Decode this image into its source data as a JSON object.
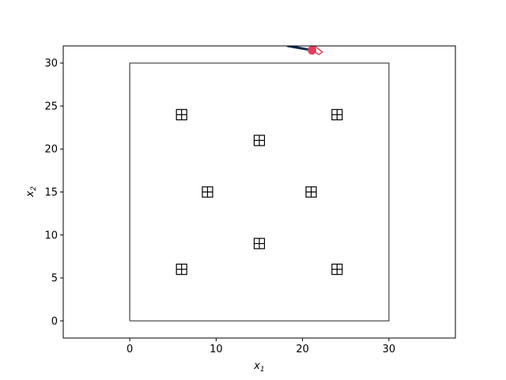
{
  "chart_data": {
    "type": "scatter",
    "title": "",
    "xlabel": "x",
    "xlabel_sub": "1",
    "ylabel": "x",
    "ylabel_sub": "2",
    "xlim": [
      -7.7,
      37.7
    ],
    "ylim": [
      -2,
      32
    ],
    "xticks": [
      0,
      10,
      20,
      30
    ],
    "yticks": [
      0,
      5,
      10,
      15,
      20,
      25,
      30
    ],
    "grid": false,
    "legend": "none",
    "boundary": {
      "x": [
        0,
        30,
        30,
        0,
        0
      ],
      "y": [
        0,
        0,
        30,
        30,
        0
      ],
      "color": "#404040"
    },
    "obstacles": {
      "marker": "boxed-plus",
      "color": "#000000",
      "points": [
        {
          "x": 6,
          "y": 24
        },
        {
          "x": 24,
          "y": 24
        },
        {
          "x": 15,
          "y": 21
        },
        {
          "x": 9,
          "y": 15
        },
        {
          "x": 21,
          "y": 15
        },
        {
          "x": 15,
          "y": 9
        },
        {
          "x": 6,
          "y": 6
        },
        {
          "x": 24,
          "y": 6
        }
      ]
    },
    "agent": {
      "position": {
        "x": 21.1,
        "y": 31.5
      },
      "color": "#e0405a",
      "path_color": "#d94a5e",
      "path": [
        {
          "x": 21.1,
          "y": 31.5
        },
        {
          "x": 21.9,
          "y": 31.0
        },
        {
          "x": 22.3,
          "y": 31.3
        },
        {
          "x": 21.4,
          "y": 32.0
        },
        {
          "x": 21.0,
          "y": 32.0
        }
      ],
      "heading": {
        "from": {
          "x": 21.1,
          "y": 31.5
        },
        "to": {
          "x": 18.3,
          "y": 32.0
        },
        "color": "#0b2a4a"
      }
    }
  }
}
